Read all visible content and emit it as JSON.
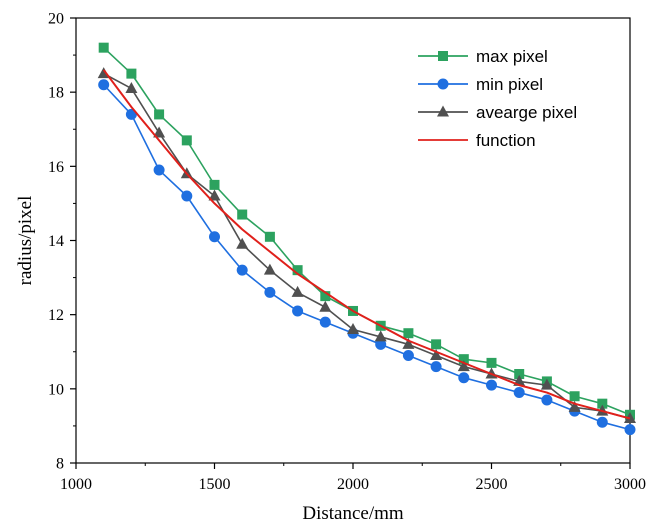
{
  "chart_data": {
    "type": "line",
    "title": "",
    "xlabel": "Distance/mm",
    "ylabel": "radius/pixel",
    "xlim": [
      1000,
      3000
    ],
    "ylim": [
      8,
      20
    ],
    "xticks": [
      1000,
      1500,
      2000,
      2500,
      3000
    ],
    "yticks": [
      8,
      10,
      12,
      14,
      16,
      18,
      20
    ],
    "grid": false,
    "legend_position": "top-right",
    "x": [
      1100,
      1200,
      1300,
      1400,
      1500,
      1600,
      1700,
      1800,
      1900,
      2000,
      2100,
      2200,
      2300,
      2400,
      2500,
      2600,
      2700,
      2800,
      2900,
      3000
    ],
    "series": [
      {
        "name": "max pixel",
        "color": "#2ca25f",
        "marker": "square",
        "values": [
          19.2,
          18.5,
          17.4,
          16.7,
          15.5,
          14.7,
          14.1,
          13.2,
          12.5,
          12.1,
          11.7,
          11.5,
          11.2,
          10.8,
          10.7,
          10.4,
          10.2,
          9.8,
          9.6,
          9.3
        ]
      },
      {
        "name": "min pixel",
        "color": "#1f6fe0",
        "marker": "circle",
        "values": [
          18.2,
          17.4,
          15.9,
          15.2,
          14.1,
          13.2,
          12.6,
          12.1,
          11.8,
          11.5,
          11.2,
          10.9,
          10.6,
          10.3,
          10.1,
          9.9,
          9.7,
          9.4,
          9.1,
          8.9
        ]
      },
      {
        "name": "avearge pixel",
        "color": "#505050",
        "marker": "triangle",
        "values": [
          18.5,
          18.1,
          16.9,
          15.8,
          15.2,
          13.9,
          13.2,
          12.6,
          12.2,
          11.6,
          11.4,
          11.2,
          10.9,
          10.6,
          10.4,
          10.2,
          10.1,
          9.5,
          9.4,
          9.2
        ]
      },
      {
        "name": "function",
        "color": "#e0201b",
        "marker": "none",
        "values": [
          18.6,
          17.6,
          16.7,
          15.8,
          15.0,
          14.3,
          13.7,
          13.1,
          12.6,
          12.1,
          11.7,
          11.3,
          11.0,
          10.7,
          10.4,
          10.1,
          9.9,
          9.6,
          9.4,
          9.2
        ]
      }
    ]
  }
}
